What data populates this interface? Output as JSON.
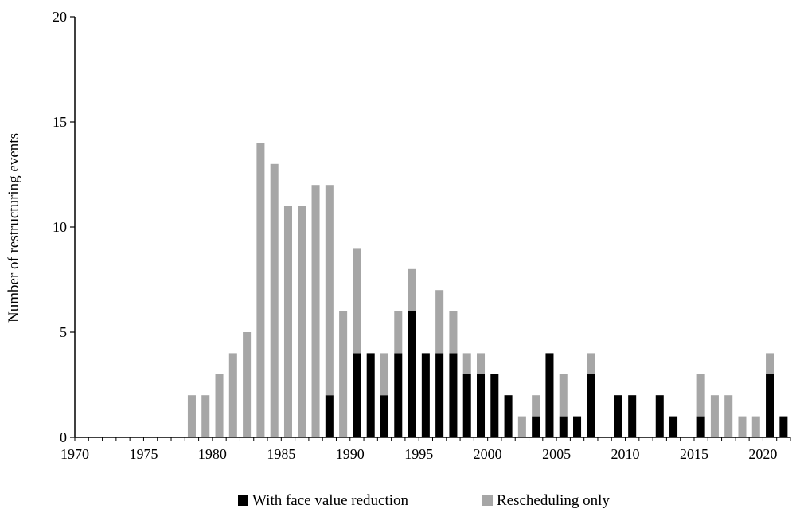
{
  "chart_data": {
    "type": "bar",
    "stacked": true,
    "title": "",
    "xlabel": "",
    "ylabel": "Number of restructuring events",
    "ylim": [
      0,
      20
    ],
    "yticks": [
      "0",
      "5",
      "10",
      "15",
      "20"
    ],
    "xlim": [
      1970,
      2021
    ],
    "xticks": [
      "1970",
      "1975",
      "1980",
      "1985",
      "1990",
      "1995",
      "2000",
      "2005",
      "2010",
      "2015",
      "2020"
    ],
    "grid": false,
    "legend_position": "bottom",
    "categories": [
      1970,
      1971,
      1972,
      1973,
      1974,
      1975,
      1976,
      1977,
      1978,
      1979,
      1980,
      1981,
      1982,
      1983,
      1984,
      1985,
      1986,
      1987,
      1988,
      1989,
      1990,
      1991,
      1992,
      1993,
      1994,
      1995,
      1996,
      1997,
      1998,
      1999,
      2000,
      2001,
      2002,
      2003,
      2004,
      2005,
      2006,
      2007,
      2008,
      2009,
      2010,
      2011,
      2012,
      2013,
      2014,
      2015,
      2016,
      2017,
      2018,
      2019,
      2020,
      2021
    ],
    "series": [
      {
        "name": "With face value reduction",
        "color": "#000000",
        "values": [
          0,
          0,
          0,
          0,
          0,
          0,
          0,
          0,
          0,
          0,
          0,
          0,
          0,
          0,
          0,
          0,
          0,
          0,
          2,
          0,
          4,
          4,
          2,
          4,
          6,
          4,
          4,
          4,
          3,
          3,
          3,
          2,
          0,
          1,
          4,
          1,
          1,
          3,
          0,
          2,
          2,
          0,
          2,
          1,
          0,
          1,
          0,
          0,
          0,
          0,
          3,
          1
        ]
      },
      {
        "name": "Rescheduling only",
        "color": "#a6a6a6",
        "values": [
          0,
          0,
          0,
          0,
          0,
          0,
          0,
          0,
          2,
          2,
          3,
          4,
          5,
          14,
          13,
          11,
          11,
          12,
          10,
          6,
          5,
          0,
          2,
          2,
          2,
          0,
          3,
          2,
          1,
          1,
          0,
          0,
          1,
          1,
          0,
          2,
          0,
          1,
          0,
          0,
          0,
          0,
          0,
          0,
          0,
          2,
          2,
          2,
          1,
          1,
          1,
          0
        ]
      }
    ]
  }
}
